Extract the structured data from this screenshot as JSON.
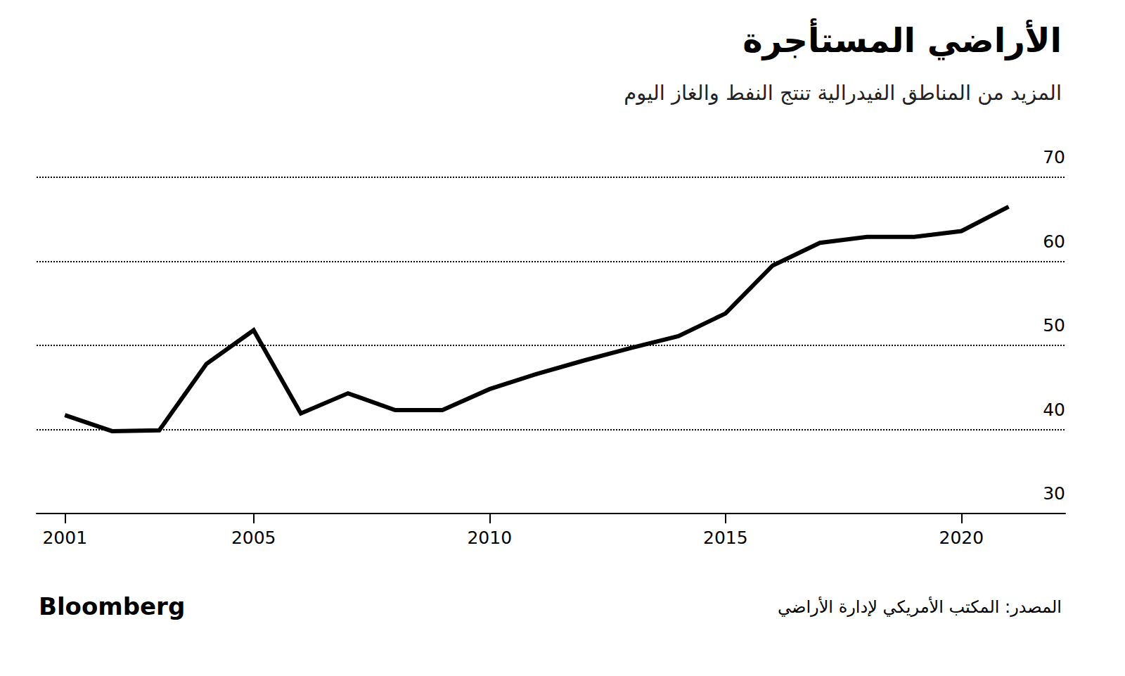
{
  "chart_data": {
    "type": "line",
    "title": "الأراضي المستأجرة",
    "subtitle": "المزيد من المناطق الفيدرالية تنتج النفط والغاز اليوم",
    "source": "المصدر: المكتب الأمريكي لإدارة الأراضي",
    "logo": "Bloomberg",
    "x": [
      2001,
      2002,
      2003,
      2004,
      2005,
      2006,
      2007,
      2008,
      2009,
      2010,
      2011,
      2012,
      2013,
      2014,
      2015,
      2016,
      2017,
      2018,
      2019,
      2020,
      2021
    ],
    "values": [
      41.7,
      39.8,
      39.9,
      47.8,
      51.8,
      41.9,
      44.3,
      42.3,
      42.3,
      44.8,
      46.6,
      48.2,
      49.7,
      51.1,
      53.8,
      59.5,
      62.2,
      62.9,
      62.9,
      63.6,
      66.5
    ],
    "color": "#000000",
    "xlim": [
      2000.4,
      2022.2
    ],
    "xticks": [
      2001,
      2005,
      2010,
      2015,
      2020
    ],
    "ylim": [
      30,
      70
    ],
    "yticks": [
      30,
      40,
      50,
      60,
      70
    ],
    "grid": true,
    "line_style": "solid"
  }
}
